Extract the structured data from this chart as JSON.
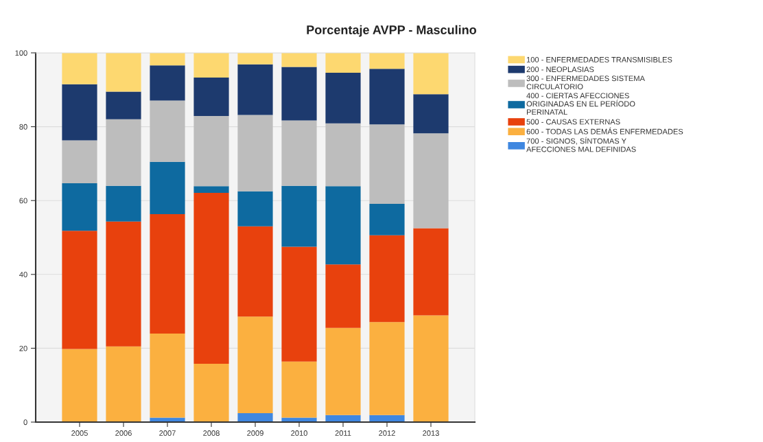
{
  "chart_data": {
    "type": "bar",
    "title": "Porcentaje AVPP - Masculino",
    "stacked": true,
    "grid": "y",
    "legend": "right",
    "categories": [
      "2005",
      "2006",
      "2007",
      "2008",
      "2009",
      "2010",
      "2011",
      "2012",
      "2013"
    ],
    "ylim": [
      0,
      100
    ],
    "yticks": [
      0,
      20,
      40,
      60,
      80,
      100
    ],
    "series": [
      {
        "name": "700 - SIGNOS, SÍNTOMAS Y\nAFECCIONES MAL DEFINIDAS",
        "color": "#3f87e0",
        "values": [
          0,
          0,
          1.2,
          0,
          2.4,
          1.2,
          1.9,
          1.9,
          0
        ]
      },
      {
        "name": "600 - TODAS LAS DEMÁS ENFERMEDADES",
        "color": "#fbb040",
        "values": [
          19.8,
          20.5,
          22.8,
          15.8,
          26.2,
          15.2,
          23.6,
          25.2,
          28.9
        ]
      },
      {
        "name": "500 - CAUSAS EXTERNAS",
        "color": "#e8410d",
        "values": [
          32.0,
          33.8,
          32.3,
          46.3,
          24.4,
          31.1,
          17.2,
          23.5,
          23.6
        ]
      },
      {
        "name": "400 - CIERTAS AFECCIONES\nORIGINADAS EN EL PERÍODO\nPERINATAL",
        "color": "#0e6aa0",
        "values": [
          12.9,
          9.7,
          14.2,
          1.8,
          9.5,
          16.5,
          21.2,
          8.5,
          0
        ]
      },
      {
        "name": "300 - ENFERMEDADES SISTEMA\nCIRCULATORIO",
        "color": "#bdbdbd",
        "values": [
          11.6,
          18.0,
          16.6,
          19.0,
          20.7,
          17.7,
          17.0,
          21.5,
          25.7
        ]
      },
      {
        "name": "200 - NEOPLASIAS",
        "color": "#1d3a6e",
        "values": [
          15.2,
          7.5,
          9.5,
          10.4,
          13.7,
          14.5,
          13.7,
          15.1,
          10.6
        ]
      },
      {
        "name": "100 - ENFERMEDADES TRANSMISIBLES",
        "color": "#fdd870",
        "values": [
          8.5,
          10.5,
          3.4,
          6.7,
          3.1,
          3.8,
          5.4,
          4.3,
          11.2
        ]
      }
    ]
  }
}
